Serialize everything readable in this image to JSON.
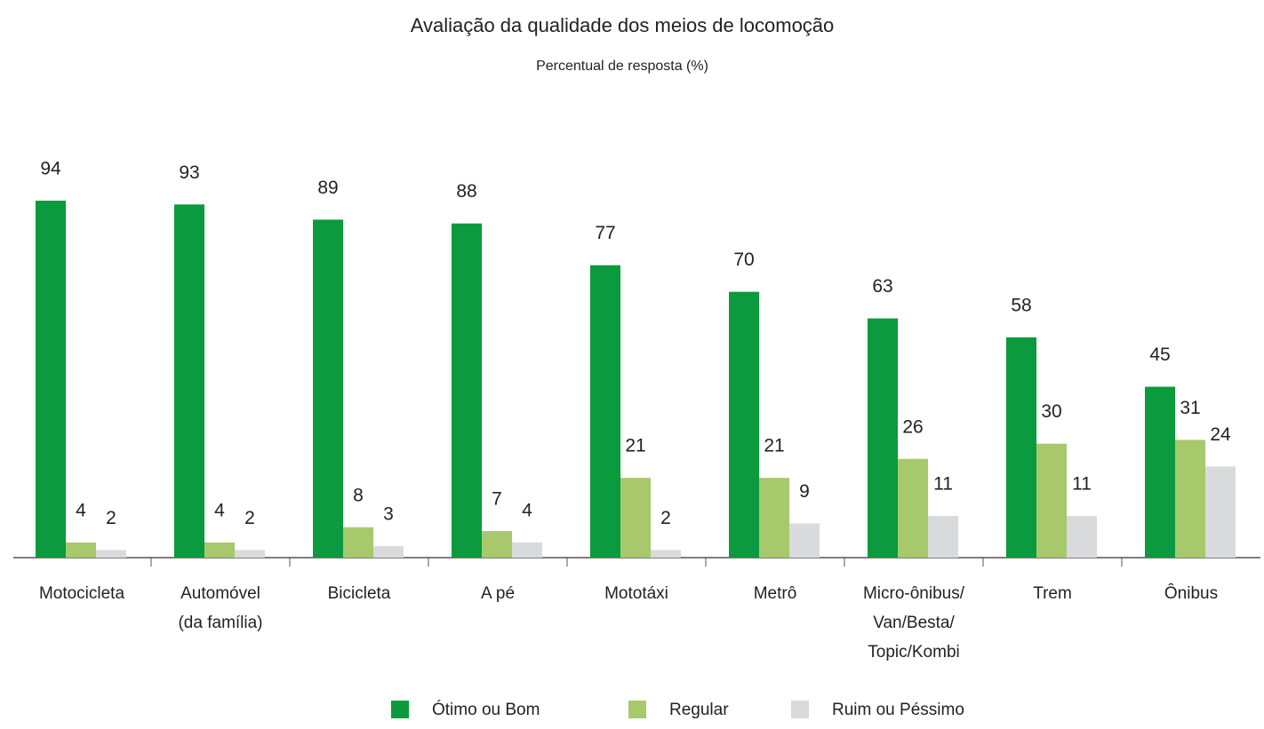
{
  "chart_data": {
    "type": "bar",
    "title": "Avaliação da qualidade dos meios de locomoção",
    "subtitle": "Percentual de resposta (%)",
    "categories": [
      "Motocicleta",
      "Automóvel\n(da família)",
      "Bicicleta",
      "A pé",
      "Mototáxi",
      "Metrô",
      "Micro-ônibus/\nVan/Besta/\nTopic/Kombi",
      "Trem",
      "Ônibus"
    ],
    "series": [
      {
        "name": "Ótimo ou Bom",
        "color": "#0b9a3d",
        "values": [
          94,
          93,
          89,
          88,
          77,
          70,
          63,
          58,
          45
        ]
      },
      {
        "name": "Regular",
        "color": "#a7c96b",
        "values": [
          4,
          4,
          8,
          7,
          21,
          21,
          26,
          30,
          31
        ]
      },
      {
        "name": "Ruim ou Péssimo",
        "color": "#d9dadb",
        "values": [
          2,
          2,
          3,
          4,
          2,
          9,
          11,
          11,
          24
        ]
      }
    ]
  }
}
